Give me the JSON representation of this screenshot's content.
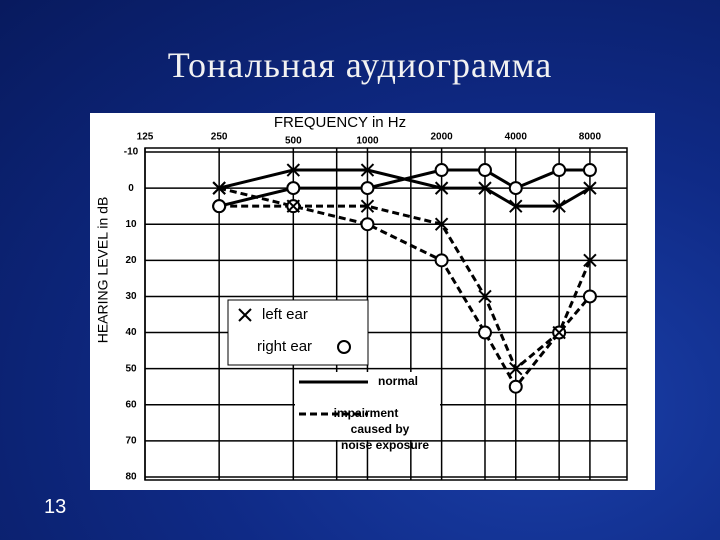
{
  "slide": {
    "title": "Тональная аудиограмма",
    "page_number": "13"
  },
  "chart_data": {
    "type": "line",
    "x_label": "FREQUENCY in Hz",
    "y_label": "HEARING LEVEL in dB",
    "xscale": "log",
    "x": [
      250,
      500,
      1000,
      2000,
      3000,
      4000,
      6000,
      8000
    ],
    "xlim": [
      125,
      11314
    ],
    "xticks": [
      125,
      250,
      500,
      1000,
      2000,
      4000,
      8000
    ],
    "xgrid_minor": [
      750,
      1500,
      3000,
      6000
    ],
    "ylim": [
      -10,
      80
    ],
    "yinverted": true,
    "yticks": [
      -10,
      0,
      10,
      20,
      30,
      40,
      50,
      60,
      70,
      80
    ],
    "grid": true,
    "markers": [
      {
        "label": "left ear",
        "symbol": "x"
      },
      {
        "label": "right ear",
        "symbol": "o"
      }
    ],
    "line_styles": [
      {
        "label": [
          "normal"
        ],
        "dash": "solid"
      },
      {
        "label": [
          "impairment",
          "caused by",
          "noise exposure"
        ],
        "dash": "dashed"
      }
    ],
    "series": [
      {
        "marker": 1,
        "line_style": 0,
        "color": "#000000",
        "values": [
          5,
          0,
          0,
          -5,
          -5,
          0,
          -5,
          -5
        ]
      },
      {
        "marker": 0,
        "line_style": 0,
        "color": "#000000",
        "values": [
          0,
          -5,
          -5,
          0,
          0,
          5,
          5,
          0
        ]
      },
      {
        "marker": 1,
        "line_style": 1,
        "color": "#000000",
        "values": [
          5,
          5,
          10,
          20,
          40,
          55,
          40,
          30
        ]
      },
      {
        "marker": 0,
        "line_style": 1,
        "color": "#000000",
        "values": [
          0,
          5,
          5,
          10,
          30,
          50,
          40,
          20
        ]
      }
    ]
  }
}
